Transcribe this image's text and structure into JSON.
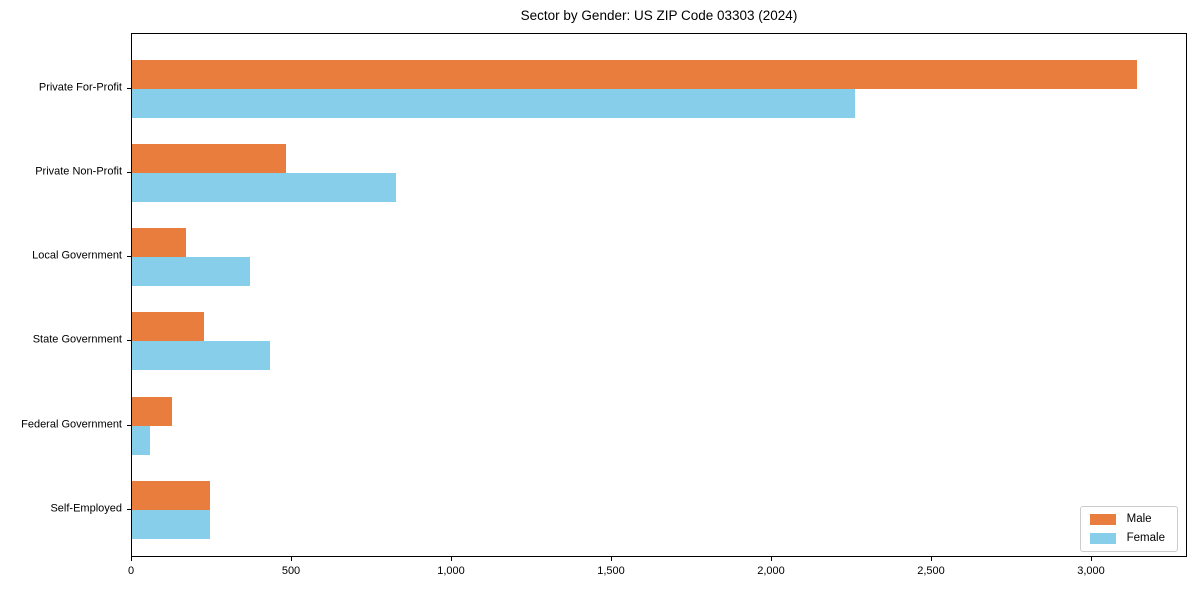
{
  "chart_data": {
    "type": "bar",
    "orientation": "horizontal",
    "title": "Sector by Gender: US ZIP Code 03303 (2024)",
    "xlabel": "",
    "ylabel": "",
    "categories": [
      "Private For-Profit",
      "Private Non-Profit",
      "Local Government",
      "State Government",
      "Federal Government",
      "Self-Employed"
    ],
    "series": [
      {
        "name": "Male",
        "color": "#e87d3e",
        "values": [
          3140,
          480,
          170,
          225,
          125,
          245
        ]
      },
      {
        "name": "Female",
        "color": "#87ceeb",
        "values": [
          2260,
          825,
          370,
          430,
          55,
          245
        ]
      }
    ],
    "xlim": [
      0,
      3300
    ],
    "x_ticks": [
      {
        "value": 0,
        "label": "0"
      },
      {
        "value": 500,
        "label": "500"
      },
      {
        "value": 1000,
        "label": "1,000"
      },
      {
        "value": 1500,
        "label": "1,500"
      },
      {
        "value": 2000,
        "label": "2,000"
      },
      {
        "value": 2500,
        "label": "2,500"
      },
      {
        "value": 3000,
        "label": "3,000"
      }
    ],
    "grid": false,
    "legend_position": "lower right",
    "background_color": "#ffffff",
    "spine_color": "#000000"
  }
}
